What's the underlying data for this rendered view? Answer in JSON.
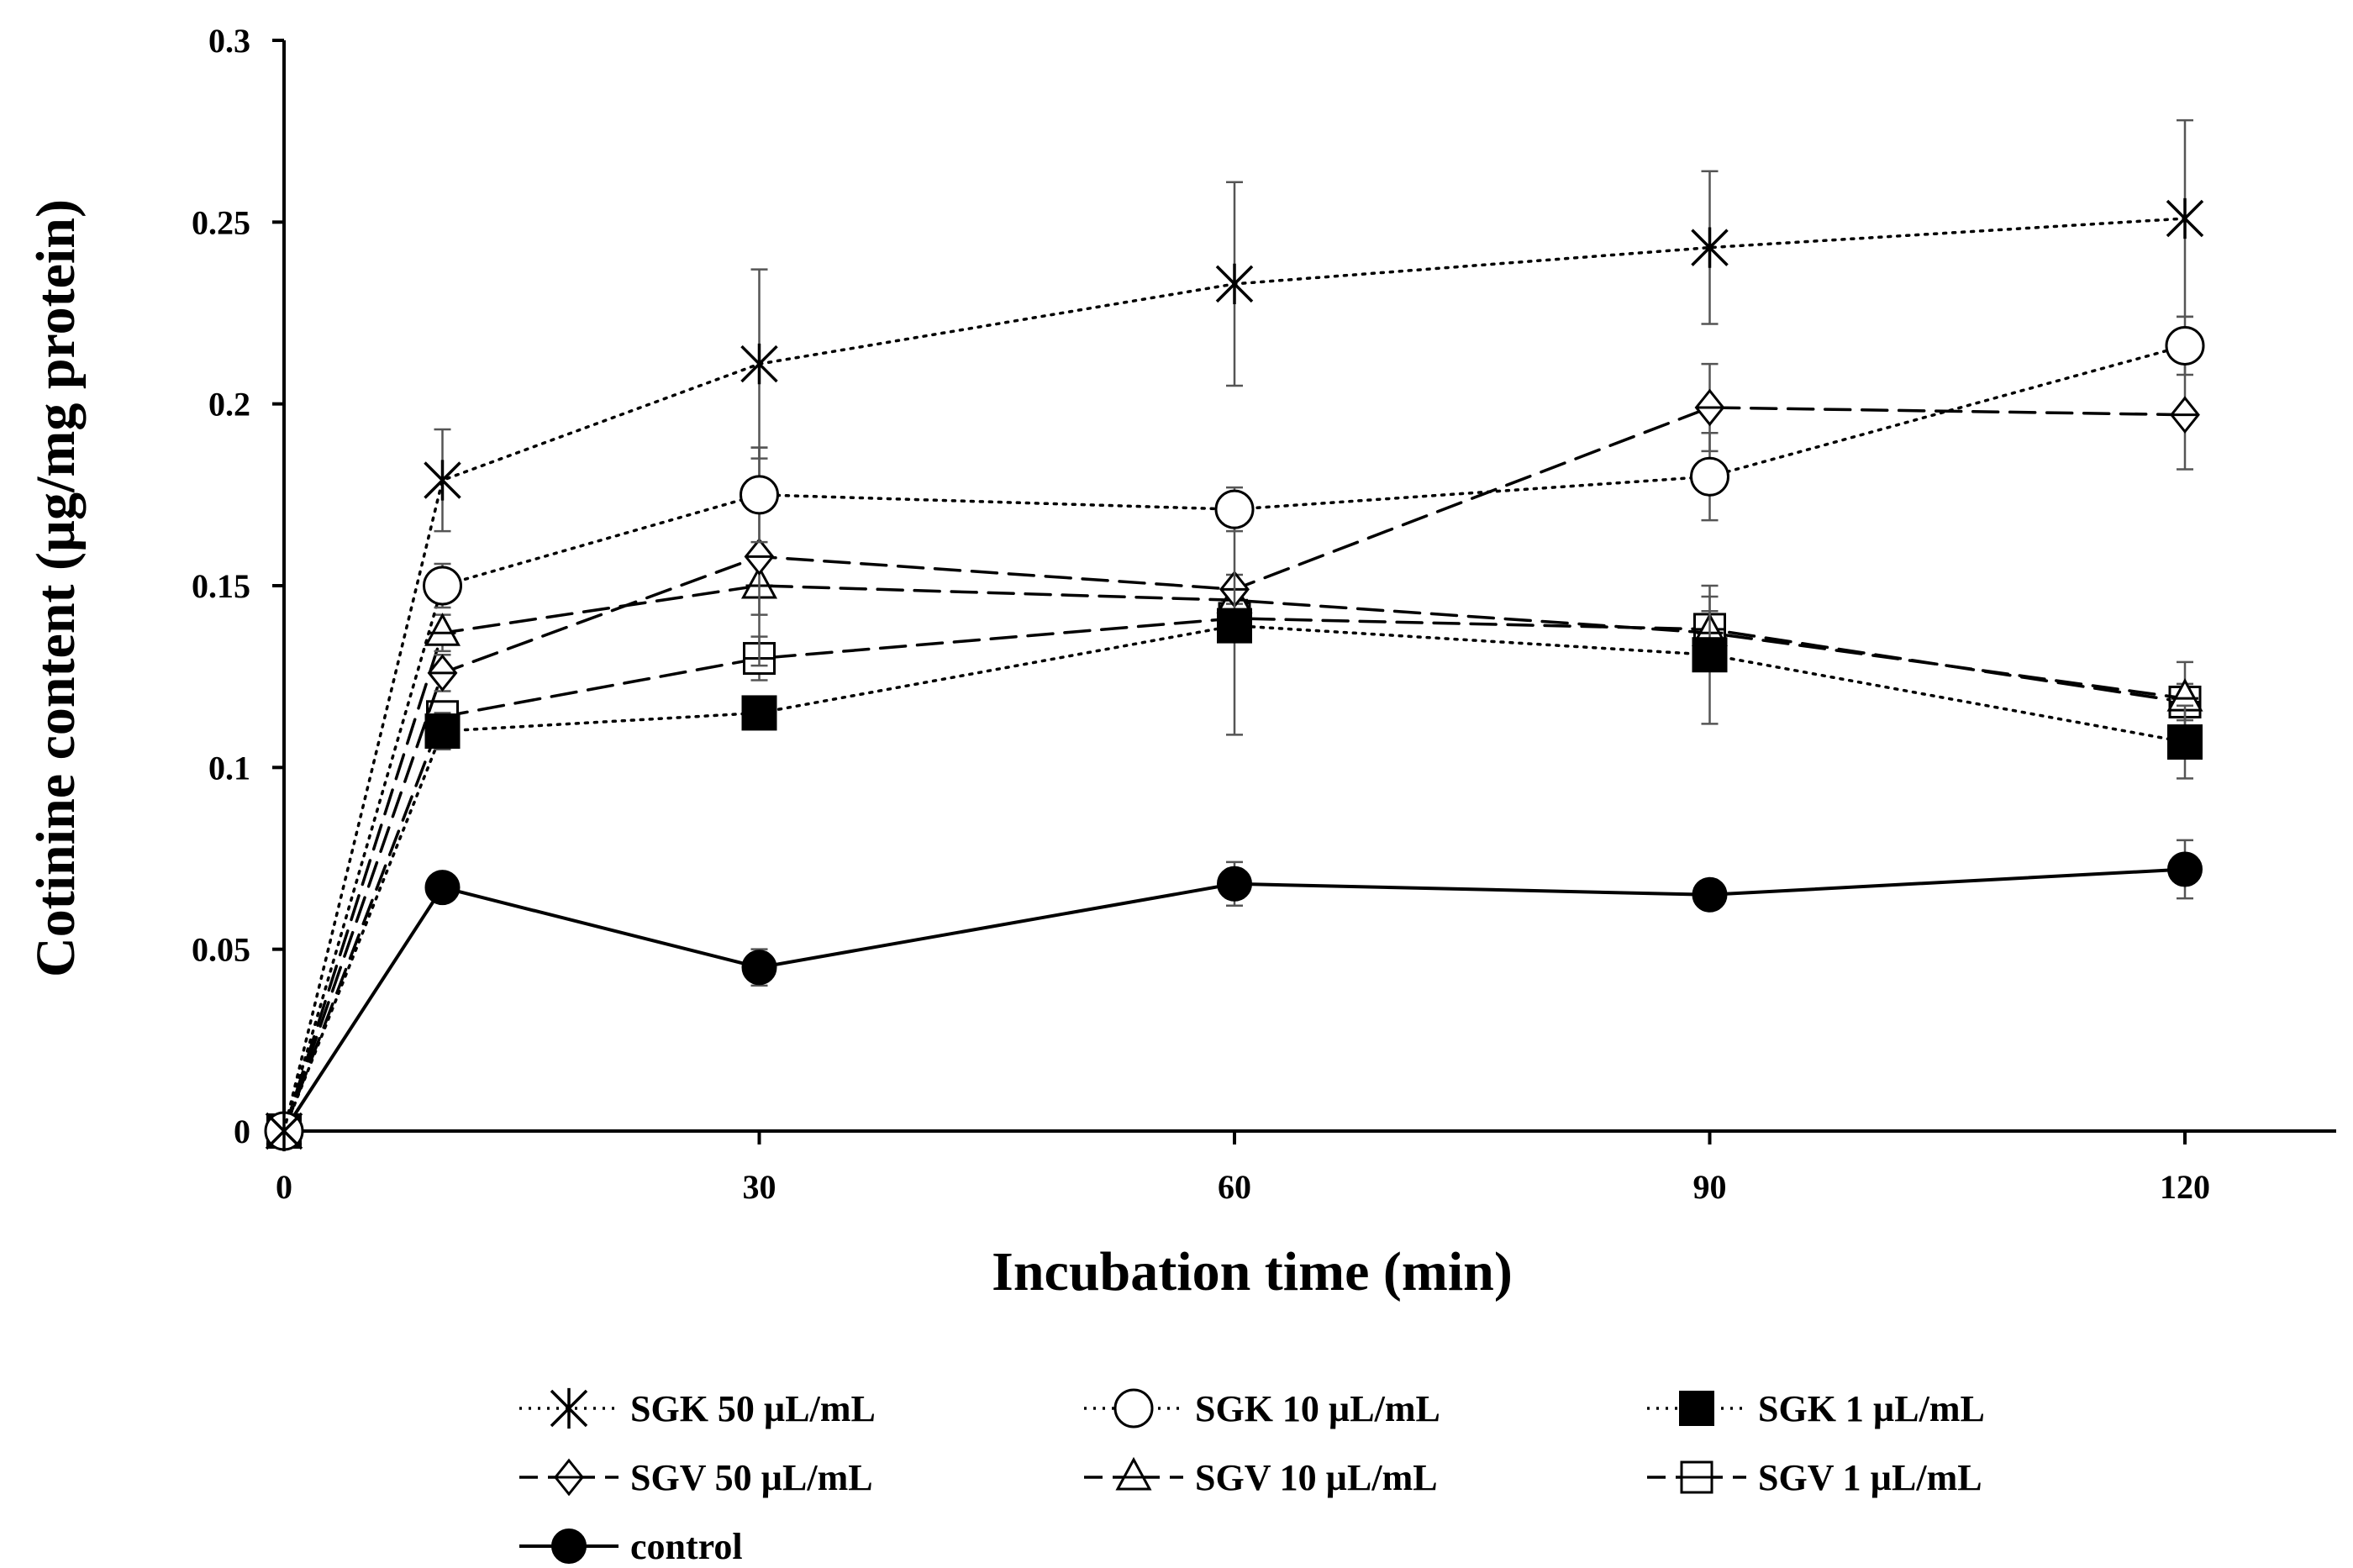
{
  "chart_data": {
    "type": "line",
    "title": "",
    "xlabel": "Incubation time (min)",
    "ylabel": "Cotinine content (µg/mg protein)",
    "xlim": [
      0,
      130
    ],
    "ylim": [
      0,
      0.3
    ],
    "x_ticks": [
      0,
      30,
      60,
      90,
      120
    ],
    "y_ticks": [
      0,
      0.05,
      0.1,
      0.15,
      0.2,
      0.25,
      0.3
    ],
    "x_tick_labels": [
      "0",
      "30",
      "60",
      "90",
      "120"
    ],
    "y_tick_labels": [
      "0",
      "0.05",
      "0.1",
      "0.15",
      "0.2",
      "0.25",
      "0.3"
    ],
    "grid": false,
    "legend_position": "bottom",
    "x": [
      0,
      10,
      30,
      60,
      90,
      120
    ],
    "series": [
      {
        "name": "SGK 50 µL/mL",
        "marker": "asterisk",
        "line": "dotted",
        "values": [
          0,
          0.179,
          0.211,
          0.233,
          0.243,
          0.251
        ],
        "errors": [
          0,
          0.014,
          0.026,
          0.028,
          0.021,
          0.027
        ]
      },
      {
        "name": "SGK 10 µL/mL",
        "marker": "open-circle",
        "line": "dotted",
        "values": [
          0,
          0.15,
          0.175,
          0.171,
          0.18,
          0.216
        ],
        "errors": [
          0,
          0.006,
          0.013,
          0.006,
          0.012,
          0.008
        ]
      },
      {
        "name": "SGK 1 µL/mL",
        "marker": "filled-square",
        "line": "dotted",
        "values": [
          0,
          0.11,
          0.115,
          0.139,
          0.131,
          0.107
        ],
        "errors": [
          0,
          0.005,
          0.003,
          0.03,
          0.019,
          0.01
        ]
      },
      {
        "name": "SGV 50 µL/mL",
        "marker": "open-diamond",
        "line": "dashed",
        "values": [
          0,
          0.126,
          0.158,
          0.149,
          0.199,
          0.197
        ],
        "errors": [
          0,
          0.005,
          0.03,
          0.004,
          0.012,
          0.015
        ]
      },
      {
        "name": "SGV 10 µL/mL",
        "marker": "open-triangle",
        "line": "dashed",
        "values": [
          0,
          0.137,
          0.15,
          0.146,
          0.137,
          0.119
        ],
        "errors": [
          0,
          0.005,
          0.008,
          0.004,
          0.01,
          0.01
        ]
      },
      {
        "name": "SGV 1 µL/mL",
        "marker": "open-square",
        "line": "dashed",
        "values": [
          0,
          0.114,
          0.13,
          0.141,
          0.138,
          0.118
        ],
        "errors": [
          0,
          0.004,
          0.006,
          0.005,
          0.005,
          0.005
        ]
      },
      {
        "name": "control",
        "marker": "filled-circle",
        "line": "solid",
        "values": [
          0,
          0.067,
          0.045,
          0.068,
          0.065,
          0.072
        ],
        "errors": [
          0,
          0.003,
          0.005,
          0.006,
          0.003,
          0.008
        ]
      }
    ]
  }
}
